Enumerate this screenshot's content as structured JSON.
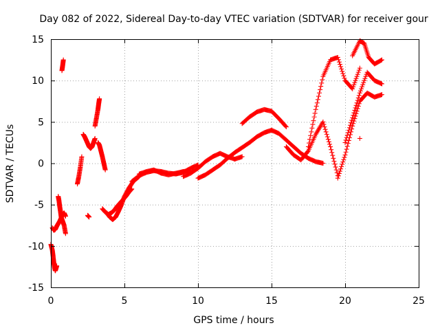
{
  "chart_data": {
    "type": "scatter",
    "title": "Day 082 of 2022, Sidereal Day-to-day VTEC variation (SDTVAR) for receiver gour",
    "xlabel": "GPS time / hours",
    "ylabel": "SDTVAR / TECUs",
    "xlim": [
      0,
      25
    ],
    "ylim": [
      -15,
      15
    ],
    "xticks": [
      "0",
      "5",
      "10",
      "15",
      "20",
      "25"
    ],
    "yticks": [
      "-15",
      "-10",
      "-5",
      "0",
      "5",
      "10",
      "15"
    ],
    "grid": true,
    "marker": "plus",
    "marker_color": "#ff0000",
    "series": [
      {
        "x": [
          0.0,
          0.1,
          0.15,
          0.2,
          0.25,
          0.3,
          0.35,
          0.4
        ],
        "y": [
          -9.8,
          -10.5,
          -11.2,
          -12.0,
          -12.6,
          -13.0,
          -12.7,
          -12.4
        ]
      },
      {
        "x": [
          0.1,
          0.2,
          0.3,
          0.4,
          0.5,
          0.6,
          0.7,
          0.8,
          0.9,
          1.0
        ],
        "y": [
          -7.8,
          -8.1,
          -8.0,
          -7.6,
          -7.3,
          -7.0,
          -6.6,
          -6.2,
          -6.0,
          -6.4
        ]
      },
      {
        "x": [
          0.5,
          0.55,
          0.6,
          0.65,
          0.7,
          0.8,
          0.9,
          1.0
        ],
        "y": [
          -4.0,
          -4.5,
          -5.2,
          -5.8,
          -6.5,
          -7.0,
          -7.5,
          -8.5
        ]
      },
      {
        "x": [
          0.75,
          0.8,
          0.85
        ],
        "y": [
          11.2,
          11.8,
          12.5
        ]
      },
      {
        "x": [
          1.8,
          1.9,
          2.0,
          2.1
        ],
        "y": [
          -2.5,
          -1.6,
          -0.5,
          0.8
        ]
      },
      {
        "x": [
          2.2,
          2.3,
          2.4,
          2.5,
          2.6,
          2.7,
          2.8,
          2.9,
          3.0
        ],
        "y": [
          3.5,
          3.2,
          2.8,
          2.4,
          2.0,
          1.8,
          2.0,
          2.5,
          3.0
        ]
      },
      {
        "x": [
          2.5,
          2.6
        ],
        "y": [
          -6.3,
          -6.5
        ]
      },
      {
        "x": [
          3.0,
          3.1,
          3.2,
          3.25,
          3.3
        ],
        "y": [
          4.5,
          5.5,
          6.5,
          7.2,
          7.8
        ]
      },
      {
        "x": [
          3.2,
          3.3,
          3.4,
          3.5,
          3.6,
          3.7
        ],
        "y": [
          2.5,
          2.2,
          1.5,
          0.8,
          0.0,
          -0.8
        ]
      },
      {
        "x": [
          3.5,
          3.7,
          3.9,
          4.1,
          4.3,
          4.5,
          4.7,
          4.9,
          5.1,
          5.3,
          5.5
        ],
        "y": [
          -5.5,
          -5.9,
          -6.2,
          -6.0,
          -5.7,
          -5.2,
          -4.8,
          -4.4,
          -4.0,
          -3.5,
          -3.1
        ]
      },
      {
        "x": [
          3.8,
          4.0,
          4.2,
          4.4,
          4.6,
          4.8,
          5.0,
          5.3,
          5.6,
          6.0
        ],
        "y": [
          -6.0,
          -6.5,
          -6.8,
          -6.5,
          -5.8,
          -5.0,
          -4.0,
          -3.0,
          -2.2,
          -1.6
        ]
      },
      {
        "x": [
          5.5,
          6.0,
          6.5,
          7.0,
          7.5,
          8.0,
          8.5,
          9.0,
          9.5,
          10.0
        ],
        "y": [
          -2.2,
          -1.5,
          -1.1,
          -0.9,
          -1.0,
          -1.2,
          -1.3,
          -1.1,
          -0.6,
          -0.2
        ]
      },
      {
        "x": [
          6.0,
          6.5,
          7.0,
          7.5,
          8.0,
          8.5,
          9.0,
          9.5
        ],
        "y": [
          -1.3,
          -1.0,
          -0.8,
          -1.2,
          -1.4,
          -1.2,
          -1.0,
          -0.9
        ]
      },
      {
        "x": [
          9.0,
          9.5,
          10.0,
          10.5,
          11.0,
          11.5,
          12.0,
          12.5,
          13.0
        ],
        "y": [
          -1.6,
          -1.2,
          -0.6,
          0.2,
          0.8,
          1.2,
          0.8,
          0.5,
          0.8
        ]
      },
      {
        "x": [
          10.0,
          10.5,
          11.0,
          11.5,
          12.0,
          12.5,
          13.0,
          13.5,
          14.0,
          14.5,
          15.0
        ],
        "y": [
          -1.8,
          -1.4,
          -0.8,
          -0.2,
          0.6,
          1.3,
          1.9,
          2.5,
          3.2,
          3.7,
          4.0
        ]
      },
      {
        "x": [
          13.0,
          13.5,
          14.0,
          14.5,
          15.0,
          15.5,
          16.0
        ],
        "y": [
          4.8,
          5.6,
          6.2,
          6.5,
          6.3,
          5.4,
          4.4
        ]
      },
      {
        "x": [
          15.0,
          15.5,
          16.0,
          16.5,
          17.0,
          17.5,
          18.0,
          18.5
        ],
        "y": [
          4.0,
          3.6,
          2.8,
          2.0,
          1.2,
          0.6,
          0.2,
          0.0
        ]
      },
      {
        "x": [
          16.0,
          16.5,
          17.0,
          17.5,
          18.0,
          18.5,
          19.0,
          19.5
        ],
        "y": [
          2.0,
          1.0,
          0.4,
          1.5,
          3.5,
          5.0,
          2.0,
          -1.5
        ]
      },
      {
        "x": [
          17.5,
          18.0,
          18.5,
          19.0,
          19.5,
          20.0,
          20.5,
          21.0
        ],
        "y": [
          2.0,
          6.5,
          10.5,
          12.5,
          12.8,
          10.0,
          9.0,
          11.5
        ]
      },
      {
        "x": [
          19.5,
          20.0,
          20.5,
          21.0,
          21.5,
          22.0,
          22.5
        ],
        "y": [
          -1.8,
          1.0,
          4.5,
          7.5,
          8.5,
          8.0,
          8.3
        ]
      },
      {
        "x": [
          20.0,
          20.5,
          21.0,
          21.5,
          22.0,
          22.5
        ],
        "y": [
          2.5,
          5.5,
          8.5,
          11.0,
          10.0,
          9.6
        ]
      },
      {
        "x": [
          20.5,
          21.0,
          21.3,
          21.6,
          22.0,
          22.5
        ],
        "y": [
          13.0,
          14.8,
          14.5,
          12.8,
          12.0,
          12.5
        ]
      },
      {
        "x": [
          21.0
        ],
        "y": [
          3.0
        ]
      }
    ]
  }
}
